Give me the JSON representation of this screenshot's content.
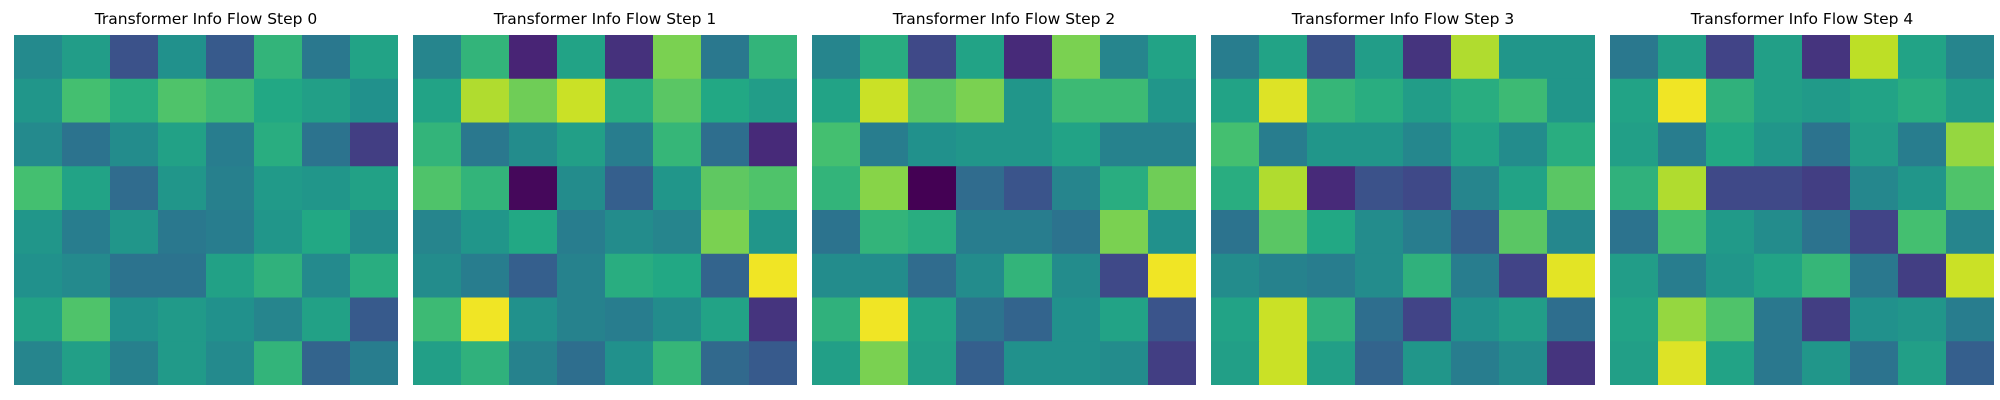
{
  "chart_data": [
    {
      "type": "heatmap",
      "title": "Transformer Info Flow Step 0",
      "rows": 8,
      "cols": 8,
      "vmin": 0,
      "vmax": 1,
      "values": [
        [
          0.47,
          0.55,
          0.25,
          0.5,
          0.28,
          0.65,
          0.4,
          0.58
        ],
        [
          0.52,
          0.7,
          0.62,
          0.72,
          0.68,
          0.6,
          0.56,
          0.5
        ],
        [
          0.47,
          0.38,
          0.48,
          0.57,
          0.42,
          0.62,
          0.38,
          0.18
        ],
        [
          0.7,
          0.58,
          0.35,
          0.52,
          0.43,
          0.54,
          0.52,
          0.57
        ],
        [
          0.52,
          0.42,
          0.52,
          0.4,
          0.42,
          0.52,
          0.6,
          0.48
        ],
        [
          0.5,
          0.47,
          0.38,
          0.38,
          0.57,
          0.64,
          0.47,
          0.62
        ],
        [
          0.57,
          0.72,
          0.5,
          0.54,
          0.5,
          0.45,
          0.57,
          0.28
        ],
        [
          0.45,
          0.56,
          0.43,
          0.54,
          0.47,
          0.65,
          0.32,
          0.42
        ]
      ]
    },
    {
      "type": "heatmap",
      "title": "Transformer Info Flow Step 1",
      "rows": 8,
      "cols": 8,
      "vmin": 0,
      "vmax": 1,
      "values": [
        [
          0.45,
          0.65,
          0.1,
          0.58,
          0.14,
          0.8,
          0.4,
          0.65
        ],
        [
          0.58,
          0.88,
          0.78,
          0.92,
          0.62,
          0.74,
          0.6,
          0.55
        ],
        [
          0.65,
          0.4,
          0.48,
          0.56,
          0.42,
          0.66,
          0.36,
          0.12
        ],
        [
          0.72,
          0.65,
          0.02,
          0.48,
          0.3,
          0.52,
          0.75,
          0.72
        ],
        [
          0.45,
          0.52,
          0.6,
          0.42,
          0.48,
          0.45,
          0.8,
          0.52
        ],
        [
          0.48,
          0.42,
          0.3,
          0.44,
          0.62,
          0.6,
          0.32,
          0.98
        ],
        [
          0.68,
          0.98,
          0.5,
          0.44,
          0.42,
          0.48,
          0.58,
          0.15
        ],
        [
          0.56,
          0.64,
          0.44,
          0.36,
          0.5,
          0.66,
          0.34,
          0.28
        ]
      ]
    },
    {
      "type": "heatmap",
      "title": "Transformer Info Flow Step 2",
      "rows": 8,
      "cols": 8,
      "vmin": 0,
      "vmax": 1,
      "values": [
        [
          0.45,
          0.62,
          0.22,
          0.58,
          0.12,
          0.8,
          0.45,
          0.58
        ],
        [
          0.58,
          0.92,
          0.74,
          0.8,
          0.52,
          0.68,
          0.68,
          0.52
        ],
        [
          0.7,
          0.42,
          0.5,
          0.52,
          0.52,
          0.58,
          0.44,
          0.44
        ],
        [
          0.65,
          0.82,
          0.0,
          0.35,
          0.26,
          0.45,
          0.62,
          0.78
        ],
        [
          0.38,
          0.65,
          0.62,
          0.42,
          0.42,
          0.38,
          0.8,
          0.5
        ],
        [
          0.48,
          0.48,
          0.35,
          0.48,
          0.65,
          0.48,
          0.22,
          0.98
        ],
        [
          0.64,
          0.98,
          0.58,
          0.38,
          0.32,
          0.5,
          0.58,
          0.26
        ],
        [
          0.56,
          0.8,
          0.56,
          0.3,
          0.5,
          0.5,
          0.48,
          0.18
        ]
      ]
    },
    {
      "type": "heatmap",
      "title": "Transformer Info Flow Step 3",
      "rows": 8,
      "cols": 8,
      "vmin": 0,
      "vmax": 1,
      "values": [
        [
          0.42,
          0.58,
          0.25,
          0.55,
          0.15,
          0.88,
          0.52,
          0.52
        ],
        [
          0.58,
          0.95,
          0.66,
          0.62,
          0.55,
          0.62,
          0.68,
          0.52
        ],
        [
          0.7,
          0.42,
          0.52,
          0.52,
          0.46,
          0.58,
          0.48,
          0.62
        ],
        [
          0.62,
          0.88,
          0.12,
          0.25,
          0.22,
          0.45,
          0.58,
          0.74
        ],
        [
          0.38,
          0.74,
          0.6,
          0.48,
          0.42,
          0.3,
          0.74,
          0.46
        ],
        [
          0.48,
          0.44,
          0.42,
          0.48,
          0.64,
          0.42,
          0.2,
          0.96
        ],
        [
          0.58,
          0.92,
          0.64,
          0.36,
          0.2,
          0.5,
          0.55,
          0.36
        ],
        [
          0.56,
          0.92,
          0.56,
          0.32,
          0.52,
          0.42,
          0.48,
          0.15
        ]
      ]
    },
    {
      "type": "heatmap",
      "title": "Transformer Info Flow Step 4",
      "rows": 8,
      "cols": 8,
      "vmin": 0,
      "vmax": 1,
      "values": [
        [
          0.4,
          0.56,
          0.2,
          0.56,
          0.15,
          0.9,
          0.58,
          0.45
        ],
        [
          0.58,
          0.98,
          0.64,
          0.56,
          0.54,
          0.58,
          0.62,
          0.54
        ],
        [
          0.56,
          0.42,
          0.6,
          0.52,
          0.38,
          0.55,
          0.42,
          0.84
        ],
        [
          0.64,
          0.88,
          0.22,
          0.22,
          0.18,
          0.46,
          0.52,
          0.72
        ],
        [
          0.38,
          0.7,
          0.54,
          0.48,
          0.38,
          0.2,
          0.7,
          0.45
        ],
        [
          0.55,
          0.42,
          0.52,
          0.58,
          0.66,
          0.4,
          0.18,
          0.92
        ],
        [
          0.58,
          0.84,
          0.72,
          0.4,
          0.18,
          0.5,
          0.52,
          0.42
        ],
        [
          0.56,
          0.95,
          0.58,
          0.4,
          0.52,
          0.38,
          0.56,
          0.3
        ]
      ]
    }
  ]
}
